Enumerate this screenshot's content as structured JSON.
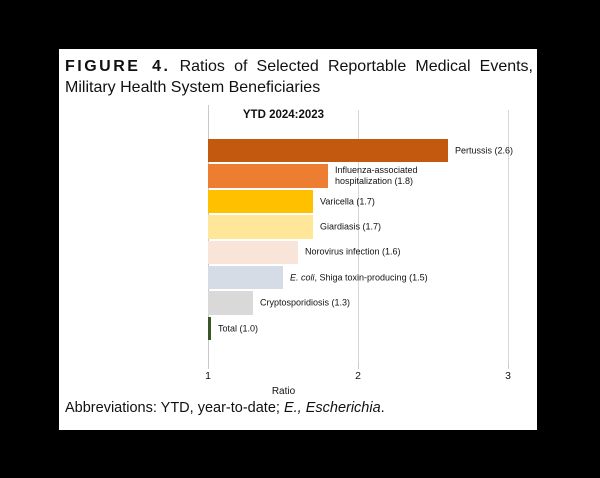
{
  "figure": {
    "label": "FIGURE 4.",
    "title_rest": "Ratios of Selected Reportable Medical Events,",
    "title_line2": "Military Health System Beneficiaries"
  },
  "chart_data": {
    "type": "bar",
    "orientation": "horizontal",
    "title": "YTD 2024:2023",
    "xlabel": "Ratio",
    "xlim": [
      1,
      3
    ],
    "xticks": [
      1,
      2,
      3
    ],
    "grid": true,
    "legend": "none",
    "categories": [
      "Pertussis",
      "Influenza-associated hospitalization",
      "Varicella",
      "Giardiasis",
      "Norovirus infection",
      "E. coli, Shiga toxin-producing",
      "Cryptosporidiosis",
      "Total"
    ],
    "values": [
      2.6,
      1.8,
      1.7,
      1.7,
      1.6,
      1.5,
      1.3,
      1.0
    ],
    "items": [
      {
        "category": "Pertussis",
        "value": 2.6,
        "color": "#c2590f",
        "label_lines": [
          "Pertussis (2.6)"
        ]
      },
      {
        "category": "Influenza-associated hospitalization",
        "value": 1.8,
        "color": "#ed7d31",
        "label_lines": [
          "Influenza-associated",
          "hospitalization (1.8)"
        ]
      },
      {
        "category": "Varicella",
        "value": 1.7,
        "color": "#ffc000",
        "label_lines": [
          "Varicella (1.7)"
        ]
      },
      {
        "category": "Giardiasis",
        "value": 1.7,
        "color": "#ffe699",
        "label_lines": [
          "Giardiasis (1.7)"
        ]
      },
      {
        "category": "Norovirus infection",
        "value": 1.6,
        "color": "#f8e4d9",
        "label_lines": [
          "Norovirus infection (1.6)"
        ]
      },
      {
        "category": "E. coli, Shiga toxin-producing",
        "value": 1.5,
        "color": "#d6dce5",
        "label_italic_prefix": "E. coli",
        "label_lines": [
          ", Shiga toxin-producing (1.5)"
        ]
      },
      {
        "category": "Cryptosporidiosis",
        "value": 1.3,
        "color": "#d9d9d9",
        "label_lines": [
          "Cryptosporidiosis (1.3)"
        ]
      },
      {
        "category": "Total",
        "value": 1.0,
        "color": "#3a5723",
        "label_lines": [
          "Total (1.0)"
        ]
      }
    ]
  },
  "footnote": {
    "prefix": "Abbreviations: YTD, year-to-date; ",
    "italic": "E., Escherichia",
    "suffix": "."
  }
}
